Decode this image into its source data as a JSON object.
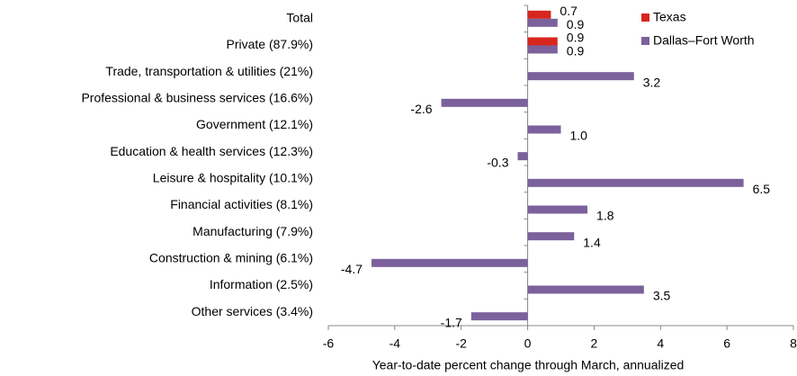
{
  "chart_data": {
    "type": "bar",
    "orientation": "horizontal",
    "x_label": "Year-to-date percent change through March, annualized",
    "categories": [
      "Total",
      "Private (87.9%)",
      "Trade, transportation & utilities (21%)",
      "Professional & business services (16.6%)",
      "Government (12.1%)",
      "Education & health services (12.3%)",
      "Leisure & hospitality (10.1%)",
      "Financial activities (8.1%)",
      "Manufacturing (7.9%)",
      "Construction & mining (6.1%)",
      "Information (2.5%)",
      "Other services (3.4%)"
    ],
    "series": [
      {
        "name": "Texas",
        "color": "#d7261e",
        "values": [
          0.7,
          0.9,
          null,
          null,
          null,
          null,
          null,
          null,
          null,
          null,
          null,
          null
        ],
        "value_labels": [
          "0.7",
          "0.9",
          null,
          null,
          null,
          null,
          null,
          null,
          null,
          null,
          null,
          null
        ]
      },
      {
        "name": "Dallas–Fort Worth",
        "color": "#7b629c",
        "values": [
          0.9,
          0.9,
          3.2,
          -2.6,
          1.0,
          -0.3,
          6.5,
          1.8,
          1.4,
          -4.7,
          3.5,
          -1.7
        ],
        "value_labels": [
          "0.9",
          "0.9",
          "3.2",
          "-2.6",
          "1.0",
          "-0.3",
          "6.5",
          "1.8",
          "1.4",
          "-4.7",
          "3.5",
          "-1.7"
        ]
      }
    ],
    "xlim": [
      -6,
      8
    ],
    "xticks": [
      -6,
      -4,
      -2,
      0,
      2,
      4,
      6,
      8
    ],
    "legend": "upper right"
  }
}
